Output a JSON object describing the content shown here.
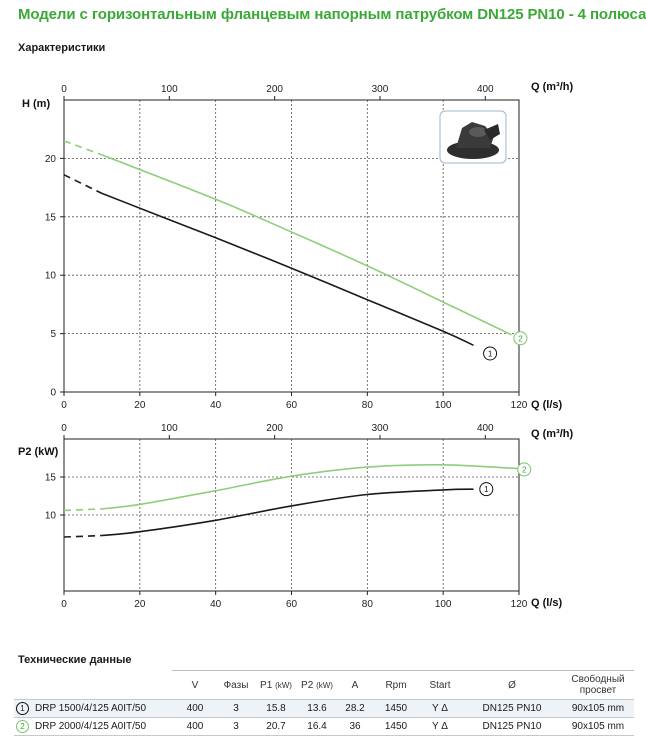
{
  "title": "Модели с горизонтальным фланцевым напорным патрубком DN125 PN10 - 4 полюса",
  "subtitle": "Характеристики",
  "colors": {
    "curve1": "#1a1a1a",
    "curve2": "#8fce7c",
    "title": "#3aa935"
  },
  "chart_data": [
    {
      "type": "line",
      "title": "H (m)",
      "ylabel": "H (m)",
      "xlabel_bottom": "Q (l/s)",
      "xlabel_top": "Q (m³/h)",
      "xlim": [
        0,
        120
      ],
      "ylim": [
        0,
        25
      ],
      "x_ticks": [
        "0",
        "20",
        "40",
        "60",
        "80",
        "100",
        "120"
      ],
      "x_tick_values": [
        0,
        20,
        40,
        60,
        80,
        100,
        120
      ],
      "top_ticks": [
        "0",
        "100",
        "200",
        "300",
        "400"
      ],
      "top_tick_values": [
        0,
        100,
        200,
        300,
        400
      ],
      "y_ticks": [
        "0",
        "5",
        "10",
        "15",
        "20"
      ],
      "y_tick_values": [
        0,
        5,
        10,
        15,
        20
      ],
      "grid": true,
      "series": [
        {
          "name": "1",
          "dashed_until": 10,
          "x": [
            0,
            10,
            40,
            60,
            80,
            100,
            108
          ],
          "values": [
            18.6,
            17.0,
            13.2,
            10.6,
            7.9,
            5.2,
            4.0
          ],
          "label_at": [
            110,
            3.3
          ]
        },
        {
          "name": "2",
          "dashed_until": 10,
          "x": [
            0,
            10,
            40,
            60,
            80,
            100,
            118
          ],
          "values": [
            21.5,
            20.3,
            16.5,
            13.7,
            10.8,
            7.7,
            4.9
          ],
          "label_at": [
            118,
            4.6
          ]
        }
      ]
    },
    {
      "type": "line",
      "title": "P2 (kW)",
      "ylabel": "P2 (kW)",
      "xlabel_bottom": "Q (l/s)",
      "xlabel_top": "Q (m³/h)",
      "xlim": [
        0,
        120
      ],
      "ylim": [
        0,
        20
      ],
      "x_ticks": [
        "0",
        "20",
        "40",
        "60",
        "80",
        "100",
        "120"
      ],
      "x_tick_values": [
        0,
        20,
        40,
        60,
        80,
        100,
        120
      ],
      "top_ticks": [
        "0",
        "100",
        "200",
        "300",
        "400"
      ],
      "top_tick_values": [
        0,
        100,
        200,
        300,
        400
      ],
      "y_ticks": [
        "10",
        "15"
      ],
      "y_tick_values": [
        10,
        15
      ],
      "grid": true,
      "series": [
        {
          "name": "1",
          "dashed_until": 10,
          "x": [
            0,
            10,
            20,
            40,
            60,
            80,
            100,
            108
          ],
          "values": [
            7.1,
            7.3,
            7.8,
            9.3,
            11.2,
            12.7,
            13.3,
            13.4
          ],
          "label_at": [
            109,
            13.4
          ]
        },
        {
          "name": "2",
          "dashed_until": 10,
          "x": [
            0,
            10,
            20,
            40,
            60,
            80,
            100,
            120
          ],
          "values": [
            10.6,
            10.8,
            11.4,
            13.2,
            15.1,
            16.3,
            16.6,
            16.1
          ],
          "label_at": [
            119,
            16.0
          ]
        }
      ]
    }
  ],
  "specs": {
    "title": "Технические данные",
    "headers": {
      "v": "V",
      "phases": "Фазы",
      "p1": "P1",
      "p1_unit": "(kW)",
      "p2": "P2",
      "p2_unit": "(kW)",
      "a": "A",
      "rpm": "Rpm",
      "start": "Start",
      "dn": "Ø",
      "passage_line1": "Свободный",
      "passage_line2": "просвет"
    },
    "rows": [
      {
        "num": "1",
        "model": "DRP 1500/4/125 A0IT/50",
        "v": "400",
        "phases": "3",
        "p1": "15.8",
        "p2": "13.6",
        "a": "28.2",
        "rpm": "1450",
        "start": "Y Δ",
        "dn": "DN125 PN10",
        "passage": "90x105 mm"
      },
      {
        "num": "2",
        "model": "DRP 2000/4/125 A0IT/50",
        "v": "400",
        "phases": "3",
        "p1": "20.7",
        "p2": "16.4",
        "a": "36",
        "rpm": "1450",
        "start": "Y Δ",
        "dn": "DN125 PN10",
        "passage": "90x105 mm"
      }
    ]
  }
}
